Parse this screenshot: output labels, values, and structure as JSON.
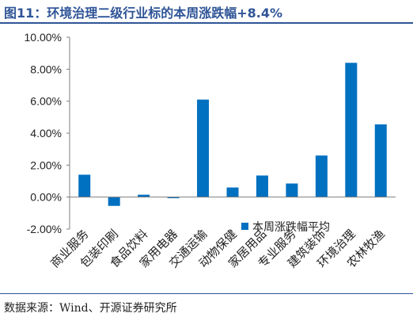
{
  "figure": {
    "title": "图11：环境治理二级行业标的本周涨跌幅+8.4%",
    "source": "数据来源：Wind、开源证券研究所"
  },
  "colors": {
    "bar": "#0070c0",
    "accent": "#2f5597"
  },
  "chart_data": {
    "type": "bar",
    "categories": [
      "商业服务",
      "包装印刷",
      "食品饮料",
      "家用电器",
      "交通运输",
      "动物保健",
      "家居用品",
      "专业服务",
      "建筑装饰",
      "环境治理",
      "农林牧渔"
    ],
    "series": [
      {
        "name": "本周涨跌幅平均",
        "values": [
          1.4,
          -0.55,
          0.15,
          -0.07,
          6.1,
          0.6,
          1.35,
          0.85,
          2.6,
          8.4,
          4.55
        ]
      }
    ],
    "ylim": [
      -2,
      10
    ],
    "yticks": [
      -2,
      0,
      2,
      4,
      6,
      8,
      10
    ],
    "ytick_labels": [
      "-2.00%",
      "0.00%",
      "2.00%",
      "4.00%",
      "6.00%",
      "8.00%",
      "10.00%"
    ],
    "legend_position": "lower-right",
    "grid": false
  }
}
